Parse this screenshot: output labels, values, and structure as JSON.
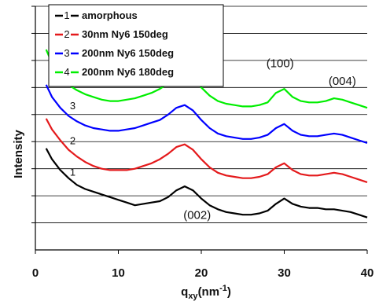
{
  "chart_data": {
    "type": "line",
    "xlabel": "q",
    "xlabel_sub": "xy",
    "xlabel_unit": "(nm",
    "xlabel_sup": "-1",
    "xlabel_close": ")",
    "ylabel": "Intensity",
    "xlim": [
      0,
      40
    ],
    "ylim": [
      0,
      9
    ],
    "x_ticks": [
      "0",
      "10",
      "20",
      "30",
      "40"
    ],
    "y_tick_values": [
      1,
      2,
      3,
      4,
      5,
      6,
      7,
      8,
      9
    ],
    "grid": "horizontal",
    "legend_position": "top-left",
    "series": [
      {
        "name": "amorphous",
        "number": "1",
        "color": "#000000",
        "x": [
          1.3,
          2,
          3,
          4,
          5,
          6,
          7,
          8,
          9,
          10,
          11,
          12,
          13,
          14,
          15,
          16,
          17,
          18,
          19,
          20,
          21,
          22,
          23,
          24,
          25,
          26,
          27,
          28,
          29,
          30,
          31,
          32,
          33,
          34,
          35,
          36,
          37,
          38,
          39,
          40
        ],
        "y": [
          3.75,
          3.35,
          2.95,
          2.65,
          2.4,
          2.25,
          2.15,
          2.05,
          1.95,
          1.85,
          1.75,
          1.65,
          1.7,
          1.75,
          1.8,
          1.95,
          2.2,
          2.35,
          2.2,
          1.9,
          1.65,
          1.5,
          1.4,
          1.35,
          1.3,
          1.3,
          1.35,
          1.45,
          1.7,
          1.9,
          1.7,
          1.6,
          1.55,
          1.55,
          1.5,
          1.5,
          1.45,
          1.4,
          1.3,
          1.2
        ]
      },
      {
        "name": "30nm Ny6 150deg",
        "number": "2",
        "color": "#e41a1c",
        "x": [
          1.3,
          2,
          3,
          4,
          5,
          6,
          7,
          8,
          9,
          10,
          11,
          12,
          13,
          14,
          15,
          16,
          17,
          18,
          19,
          20,
          21,
          22,
          23,
          24,
          25,
          26,
          27,
          28,
          29,
          30,
          31,
          32,
          33,
          34,
          35,
          36,
          37,
          38,
          39,
          40
        ],
        "y": [
          4.85,
          4.45,
          4.05,
          3.7,
          3.45,
          3.25,
          3.1,
          3.0,
          2.95,
          2.95,
          2.95,
          3.0,
          3.1,
          3.2,
          3.35,
          3.55,
          3.8,
          3.9,
          3.7,
          3.35,
          3.05,
          2.85,
          2.75,
          2.7,
          2.65,
          2.65,
          2.7,
          2.8,
          3.05,
          3.2,
          2.95,
          2.8,
          2.75,
          2.75,
          2.8,
          2.85,
          2.8,
          2.7,
          2.6,
          2.5
        ]
      },
      {
        "name": "200nm Ny6 150deg",
        "number": "3",
        "color": "#0000ff",
        "x": [
          1.3,
          2,
          3,
          4,
          5,
          6,
          7,
          8,
          9,
          10,
          11,
          12,
          13,
          14,
          15,
          16,
          17,
          18,
          19,
          20,
          21,
          22,
          23,
          24,
          25,
          26,
          27,
          28,
          29,
          30,
          31,
          32,
          33,
          34,
          35,
          36,
          37,
          38,
          39,
          40
        ],
        "y": [
          6.1,
          5.65,
          5.25,
          4.95,
          4.75,
          4.6,
          4.5,
          4.45,
          4.4,
          4.4,
          4.45,
          4.5,
          4.6,
          4.7,
          4.8,
          5.0,
          5.25,
          5.35,
          5.15,
          4.8,
          4.5,
          4.3,
          4.2,
          4.15,
          4.1,
          4.1,
          4.15,
          4.25,
          4.5,
          4.65,
          4.4,
          4.25,
          4.2,
          4.2,
          4.25,
          4.3,
          4.25,
          4.15,
          4.05,
          3.95
        ]
      },
      {
        "name": "200nm Ny6 180deg",
        "number": "4",
        "color": "#00ee00",
        "x": [
          1.3,
          2,
          3,
          4,
          5,
          6,
          7,
          8,
          9,
          10,
          11,
          12,
          13,
          14,
          15,
          16,
          17,
          18,
          19,
          20,
          21,
          22,
          23,
          24,
          25,
          26,
          27,
          28,
          29,
          30,
          31,
          32,
          33,
          34,
          35,
          36,
          37,
          38,
          39,
          40
        ],
        "y": [
          7.4,
          6.9,
          6.45,
          6.1,
          5.9,
          5.75,
          5.65,
          5.55,
          5.5,
          5.5,
          5.55,
          5.6,
          5.7,
          5.8,
          5.95,
          6.15,
          6.45,
          6.6,
          6.4,
          6.0,
          5.7,
          5.5,
          5.4,
          5.35,
          5.3,
          5.3,
          5.35,
          5.45,
          5.8,
          5.95,
          5.65,
          5.5,
          5.45,
          5.45,
          5.5,
          5.6,
          5.55,
          5.45,
          5.35,
          5.25
        ]
      }
    ],
    "curve_number_labels": [
      {
        "text": "1",
        "x": 4.5,
        "y": 2.75
      },
      {
        "text": "2",
        "x": 4.5,
        "y": 3.9
      },
      {
        "text": "3",
        "x": 4.5,
        "y": 5.2
      },
      {
        "text": "4",
        "x": 4.5,
        "y": 6.55
      }
    ],
    "annotations": [
      {
        "text": "(100)",
        "x": 29.5,
        "y": 6.75
      },
      {
        "text": "(004)",
        "x": 37,
        "y": 6.1
      },
      {
        "text": "(002)",
        "x": 19.5,
        "y": 1.15
      }
    ]
  }
}
